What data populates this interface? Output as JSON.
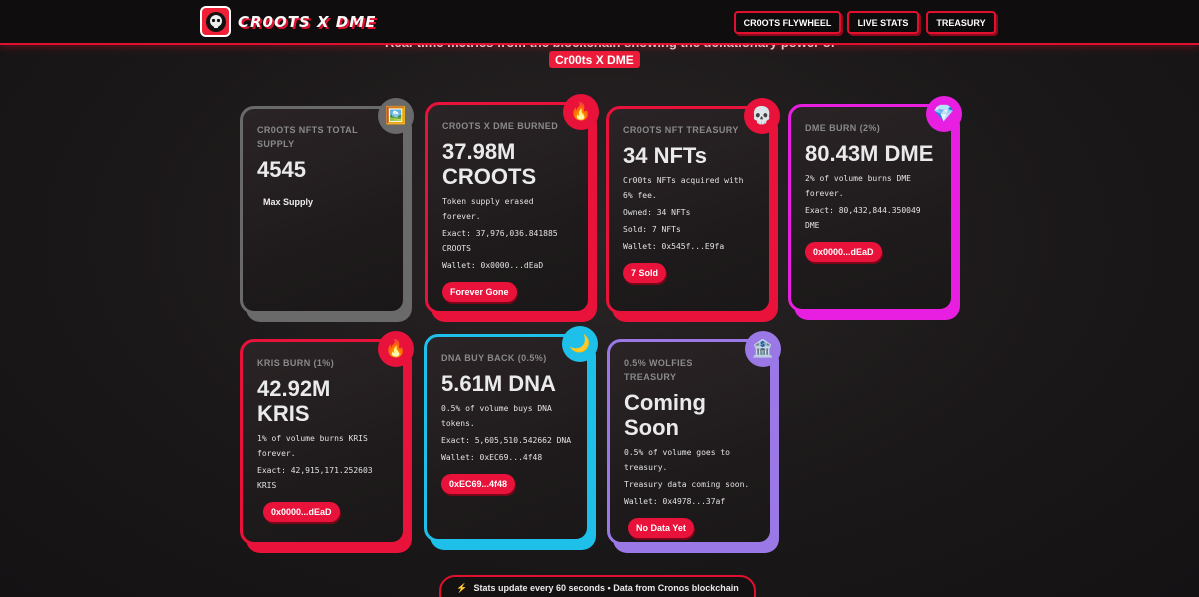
{
  "nav": {
    "brand": "CR0OTS X DME",
    "buttons": [
      "CR0OTS FLYWHEEL",
      "LIVE STATS",
      "TREASURY"
    ]
  },
  "header": {
    "subtitle": "Real-time metrics from the blockchain showing the deflationary power of",
    "brand_tag": "Cr00ts X DME"
  },
  "colors": {
    "red": "#e8123a",
    "gray": "#6a6a6a",
    "magenta": "#e81fe0",
    "cyan": "#1ec0ea",
    "purple": "#9a78e6"
  },
  "cards": [
    {
      "label": "CR0OTS NFTS TOTAL SUPPLY",
      "value": "4545",
      "note": "Max Supply",
      "icon": "picture-icon",
      "glyph": "🖼️"
    },
    {
      "label": "CR0OTS X DME BURNED",
      "value": "37.98M CROOTS",
      "desc": "Token supply erased forever.",
      "exact": "Exact: 37,976,036.841885 CROOTS",
      "wallet": "Wallet: 0x0000...dEaD",
      "pill": "Forever Gone",
      "icon": "fire-icon",
      "glyph": "🔥"
    },
    {
      "label": "CR0OTS NFT TREASURY",
      "value": "34 NFTs",
      "desc": "Cr00ts NFTs acquired with 6% fee.",
      "owned": "Owned: 34 NFTs",
      "sold": "Sold: 7 NFTs",
      "wallet": "Wallet: 0x545f...E9fa",
      "pill": "7 Sold",
      "icon": "skull-icon",
      "glyph": "💀"
    },
    {
      "label": "DME BURN (2%)",
      "value": "80.43M DME",
      "desc": "2% of volume burns DME forever.",
      "exact": "Exact: 80,432,844.350049 DME",
      "pill": "0x0000...dEaD",
      "icon": "gem-icon",
      "glyph": "💎"
    },
    {
      "label": "KRIS BURN (1%)",
      "value": "42.92M KRIS",
      "desc": "1% of volume burns KRIS forever.",
      "exact": "Exact: 42,915,171.252603 KRIS",
      "pill": "0x0000...dEaD",
      "icon": "fire-icon",
      "glyph": "🔥"
    },
    {
      "label": "DNA BUY BACK (0.5%)",
      "value": "5.61M DNA",
      "desc": "0.5% of volume buys DNA tokens.",
      "exact": "Exact: 5,605,510.542662 DNA",
      "wallet": "Wallet: 0xEC69...4f48",
      "pill": "0xEC69...4f48",
      "icon": "moon-icon",
      "glyph": "🌙"
    },
    {
      "label": "0.5% WOLFIES TREASURY",
      "value": "Coming Soon",
      "desc": "0.5% of volume goes to treasury.",
      "status": "Treasury data coming soon.",
      "wallet": "Wallet: 0x4978...37af",
      "pill": "No Data Yet",
      "icon": "bank-icon",
      "glyph": "🏦"
    }
  ],
  "footer": {
    "icon": "lightning-icon",
    "glyph": "⚡",
    "text": "Stats update every 60 seconds • Data from Cronos blockchain"
  }
}
